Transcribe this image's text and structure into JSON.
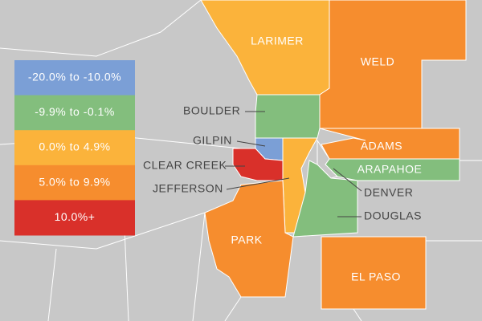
{
  "legend": [
    {
      "label": "-20.0% to -10.0%",
      "color": "#7b9fd6"
    },
    {
      "label": "-9.9% to -0.1%",
      "color": "#83be7d"
    },
    {
      "label": "0.0% to 4.9%",
      "color": "#fbb33b"
    },
    {
      "label": "5.0% to 9.9%",
      "color": "#f68d2e"
    },
    {
      "label": "10.0%+",
      "color": "#d9302a"
    }
  ],
  "counties": [
    {
      "name": "LARIMER",
      "color": "#fbb33b"
    },
    {
      "name": "WELD",
      "color": "#f68d2e"
    },
    {
      "name": "BOULDER",
      "color": "#83be7d"
    },
    {
      "name": "GILPIN",
      "color": "#7b9fd6"
    },
    {
      "name": "CLEAR CREEK",
      "color": "#d9302a"
    },
    {
      "name": "JEFFERSON",
      "color": "#fbb33b"
    },
    {
      "name": "ADAMS",
      "color": "#f68d2e"
    },
    {
      "name": "ARAPAHOE",
      "color": "#83be7d"
    },
    {
      "name": "DENVER",
      "color": "#c8c8c8"
    },
    {
      "name": "DOUGLAS",
      "color": "#83be7d"
    },
    {
      "name": "PARK",
      "color": "#f68d2e"
    },
    {
      "name": "EL PASO",
      "color": "#f68d2e"
    }
  ]
}
